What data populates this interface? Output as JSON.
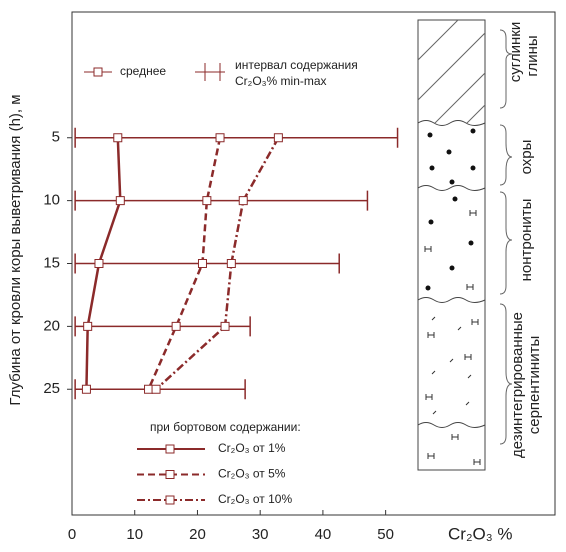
{
  "chart_data": {
    "type": "line",
    "ylabel": "Глубина от кровли коры выветривания (h), м",
    "xlabel": "Cr₂O₃ %",
    "mean_label": "среднее",
    "interval_label": [
      "интервал содержания",
      "Cr₂O₃% min-max"
    ],
    "legend_title": "при бортовом содержании:",
    "y": [
      5,
      10,
      15,
      20,
      25
    ],
    "series": [
      {
        "name": "Cr₂O₃ от 1%",
        "color": "#8b2a2a",
        "dash": "solid",
        "values": [
          7.3,
          7.7,
          4.3,
          2.5,
          2.3
        ]
      },
      {
        "name": "Cr₂O₃ от 5%",
        "color": "#8b2a2a",
        "dash": "dashed",
        "values": [
          23.6,
          21.5,
          20.8,
          16.6,
          12.2
        ]
      },
      {
        "name": "Cr₂O₃ от 10%",
        "color": "#8b2a2a",
        "dash": "dashdot",
        "values": [
          32.9,
          27.3,
          25.4,
          24.4,
          13.4
        ]
      }
    ],
    "intervals": {
      "color": "#8b2a2a",
      "min": [
        0.5,
        0.5,
        0.5,
        0.5,
        0.5
      ],
      "max": [
        51.9,
        47.1,
        42.6,
        28.4,
        27.6
      ]
    },
    "xlim": [
      0,
      77
    ],
    "xticks": [
      0,
      10,
      20,
      30,
      40,
      50
    ],
    "ylim": [
      -5,
      35
    ],
    "yticks": [
      5,
      10,
      15,
      20,
      25
    ],
    "column_labels": [
      [
        "суглинки",
        "глины"
      ],
      [
        "охры"
      ],
      [
        "нонтрониты"
      ],
      [
        "дезинтегрированные",
        "серпентиниты"
      ]
    ]
  }
}
